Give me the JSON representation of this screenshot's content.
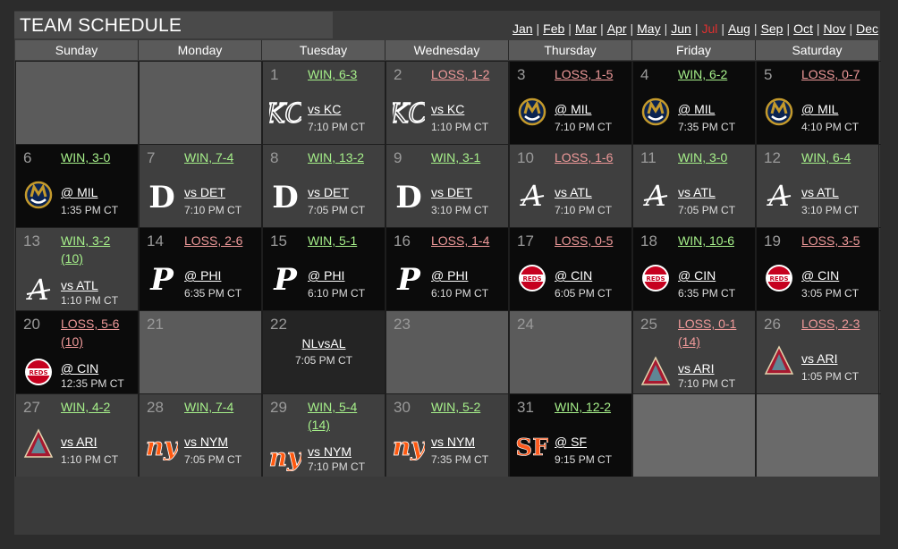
{
  "title": "TEAM SCHEDULE",
  "months": [
    {
      "label": "Jan",
      "current": false
    },
    {
      "label": "Feb",
      "current": false
    },
    {
      "label": "Mar",
      "current": false
    },
    {
      "label": "Apr",
      "current": false
    },
    {
      "label": "May",
      "current": false
    },
    {
      "label": "Jun",
      "current": false
    },
    {
      "label": "Jul",
      "current": true
    },
    {
      "label": "Aug",
      "current": false
    },
    {
      "label": "Sep",
      "current": false
    },
    {
      "label": "Oct",
      "current": false
    },
    {
      "label": "Nov",
      "current": false
    },
    {
      "label": "Dec",
      "current": false
    }
  ],
  "month_separator": "|",
  "days_of_week": [
    "Sunday",
    "Monday",
    "Tuesday",
    "Wednesday",
    "Thursday",
    "Friday",
    "Saturday"
  ],
  "colors": {
    "win": "#a6f08a",
    "loss": "#f09a9a",
    "current_month": "#e03030",
    "home_cell": "#3f3f3f",
    "away_cell": "#0b0b0b"
  },
  "weeks": [
    [
      {
        "type": "empty"
      },
      {
        "type": "empty"
      },
      {
        "type": "game",
        "day": "1",
        "result": "WIN, 6-3",
        "outcome": "win",
        "opp": "vs KC",
        "time": "7:10 PM CT",
        "logo": "royals-kc-logo",
        "venue": "home"
      },
      {
        "type": "game",
        "day": "2",
        "result": "LOSS, 1-2",
        "outcome": "loss",
        "opp": "vs KC",
        "time": "1:10 PM CT",
        "logo": "royals-kc-logo",
        "venue": "home"
      },
      {
        "type": "game",
        "day": "3",
        "result": "LOSS, 1-5",
        "outcome": "loss",
        "opp": "@ MIL",
        "time": "7:10 PM CT",
        "logo": "brewers-logo",
        "venue": "away"
      },
      {
        "type": "game",
        "day": "4",
        "result": "WIN, 6-2",
        "outcome": "win",
        "opp": "@ MIL",
        "time": "7:35 PM CT",
        "logo": "brewers-logo",
        "venue": "away"
      },
      {
        "type": "game",
        "day": "5",
        "result": "LOSS, 0-7",
        "outcome": "loss",
        "opp": "@ MIL",
        "time": "4:10 PM CT",
        "logo": "brewers-logo",
        "venue": "away"
      }
    ],
    [
      {
        "type": "game",
        "day": "6",
        "result": "WIN, 3-0",
        "outcome": "win",
        "opp": "@ MIL",
        "time": "1:35 PM CT",
        "logo": "brewers-logo",
        "venue": "away"
      },
      {
        "type": "game",
        "day": "7",
        "result": "WIN, 7-4",
        "outcome": "win",
        "opp": "vs DET",
        "time": "7:10 PM CT",
        "logo": "tigers-logo",
        "venue": "home"
      },
      {
        "type": "game",
        "day": "8",
        "result": "WIN, 13-2",
        "outcome": "win",
        "opp": "vs DET",
        "time": "7:05 PM CT",
        "logo": "tigers-logo",
        "venue": "home"
      },
      {
        "type": "game",
        "day": "9",
        "result": "WIN, 3-1",
        "outcome": "win",
        "opp": "vs DET",
        "time": "3:10 PM CT",
        "logo": "tigers-logo",
        "venue": "home"
      },
      {
        "type": "game",
        "day": "10",
        "result": "LOSS, 1-6",
        "outcome": "loss",
        "opp": "vs ATL",
        "time": "7:10 PM CT",
        "logo": "braves-logo",
        "venue": "home"
      },
      {
        "type": "game",
        "day": "11",
        "result": "WIN, 3-0",
        "outcome": "win",
        "opp": "vs ATL",
        "time": "7:05 PM CT",
        "logo": "braves-logo",
        "venue": "home"
      },
      {
        "type": "game",
        "day": "12",
        "result": "WIN, 6-4",
        "outcome": "win",
        "opp": "vs ATL",
        "time": "3:10 PM CT",
        "logo": "braves-logo",
        "venue": "home"
      }
    ],
    [
      {
        "type": "game",
        "day": "13",
        "result": "WIN, 3-2",
        "result2": "(10)",
        "outcome": "win",
        "opp": "vs ATL",
        "time": "1:10 PM CT",
        "logo": "braves-logo",
        "venue": "home"
      },
      {
        "type": "game",
        "day": "14",
        "result": "LOSS, 2-6",
        "outcome": "loss",
        "opp": "@ PHI",
        "time": "6:35 PM CT",
        "logo": "phillies-logo",
        "venue": "away"
      },
      {
        "type": "game",
        "day": "15",
        "result": "WIN, 5-1",
        "outcome": "win",
        "opp": "@ PHI",
        "time": "6:10 PM CT",
        "logo": "phillies-logo",
        "venue": "away"
      },
      {
        "type": "game",
        "day": "16",
        "result": "LOSS, 1-4",
        "outcome": "loss",
        "opp": "@ PHI",
        "time": "6:10 PM CT",
        "logo": "phillies-logo",
        "venue": "away"
      },
      {
        "type": "game",
        "day": "17",
        "result": "LOSS, 0-5",
        "outcome": "loss",
        "opp": "@ CIN",
        "time": "6:05 PM CT",
        "logo": "reds-logo",
        "venue": "away"
      },
      {
        "type": "game",
        "day": "18",
        "result": "WIN, 10-6",
        "outcome": "win",
        "opp": "@ CIN",
        "time": "6:35 PM CT",
        "logo": "reds-logo",
        "venue": "away"
      },
      {
        "type": "game",
        "day": "19",
        "result": "LOSS, 3-5",
        "outcome": "loss",
        "opp": "@ CIN",
        "time": "3:05 PM CT",
        "logo": "reds-logo",
        "venue": "away"
      }
    ],
    [
      {
        "type": "game",
        "day": "20",
        "result": "LOSS, 5-6",
        "result2": "(10)",
        "outcome": "loss",
        "opp": "@ CIN",
        "time": "12:35 PM CT",
        "logo": "reds-logo",
        "venue": "away"
      },
      {
        "type": "off",
        "day": "21"
      },
      {
        "type": "asg",
        "day": "22",
        "label": "NLvsAL",
        "time": "7:05 PM CT"
      },
      {
        "type": "off",
        "day": "23"
      },
      {
        "type": "off",
        "day": "24"
      },
      {
        "type": "game",
        "day": "25",
        "result": "LOSS, 0-1",
        "result2": "(14)",
        "outcome": "loss",
        "opp": "vs ARI",
        "time": "7:10 PM CT",
        "logo": "diamondbacks-logo",
        "venue": "home"
      },
      {
        "type": "game",
        "day": "26",
        "result": "LOSS, 2-3",
        "outcome": "loss",
        "opp": "vs ARI",
        "time": "1:05 PM CT",
        "logo": "diamondbacks-logo",
        "venue": "home"
      }
    ],
    [
      {
        "type": "game",
        "day": "27",
        "result": "WIN, 4-2",
        "outcome": "win",
        "opp": "vs ARI",
        "time": "1:10 PM CT",
        "logo": "diamondbacks-logo",
        "venue": "home"
      },
      {
        "type": "game",
        "day": "28",
        "result": "WIN, 7-4",
        "outcome": "win",
        "opp": "vs NYM",
        "time": "7:05 PM CT",
        "logo": "mets-logo",
        "venue": "home"
      },
      {
        "type": "game",
        "day": "29",
        "result": "WIN, 5-4",
        "result2": "(14)",
        "outcome": "win",
        "opp": "vs NYM",
        "time": "7:10 PM CT",
        "logo": "mets-logo",
        "venue": "home"
      },
      {
        "type": "game",
        "day": "30",
        "result": "WIN, 5-2",
        "outcome": "win",
        "opp": "vs NYM",
        "time": "7:35 PM CT",
        "logo": "mets-logo",
        "venue": "home"
      },
      {
        "type": "game",
        "day": "31",
        "result": "WIN, 12-2",
        "outcome": "win",
        "opp": "@ SF",
        "time": "9:15 PM CT",
        "logo": "giants-logo",
        "venue": "away"
      },
      {
        "type": "blank"
      },
      {
        "type": "blank"
      }
    ]
  ]
}
